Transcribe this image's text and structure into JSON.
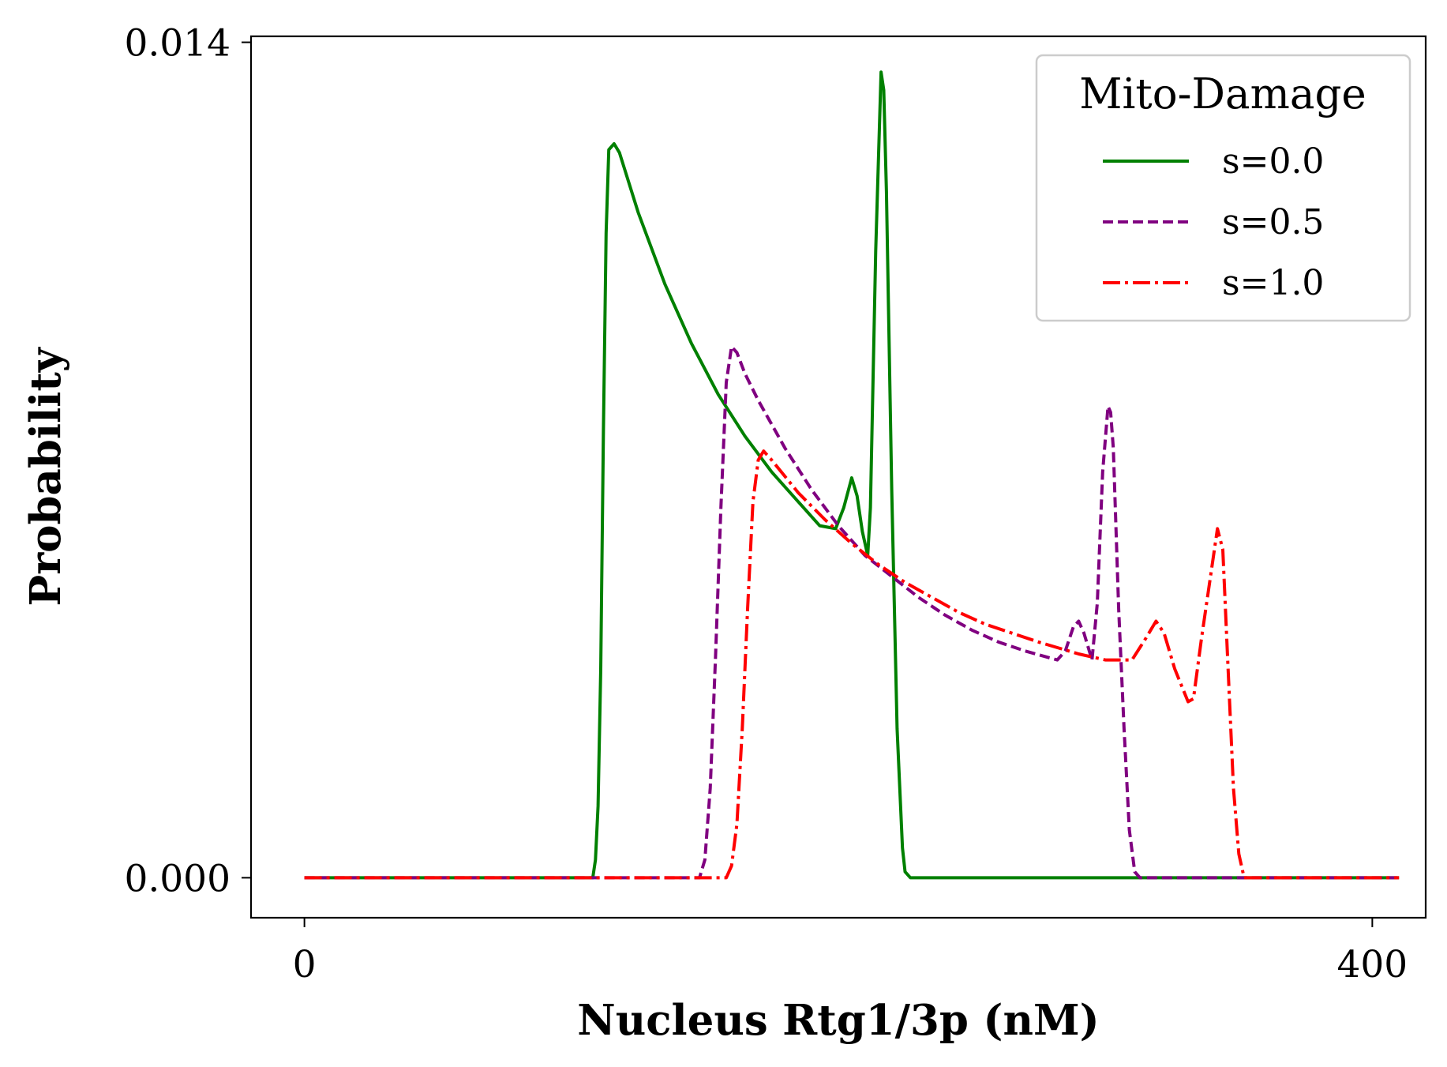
{
  "chart_data": {
    "type": "line",
    "title": "",
    "xlabel": "Nucleus Rtg1/3p (nM)",
    "ylabel": "Probability",
    "xlim": [
      -20,
      420
    ],
    "ylim": [
      -0.00067,
      0.0141
    ],
    "x_ticks": [
      0,
      400
    ],
    "x_tick_labels": [
      "0",
      "400"
    ],
    "y_ticks": [
      0.0,
      0.014
    ],
    "y_tick_labels": [
      "0.000",
      "0.014"
    ],
    "grid": false,
    "legend": {
      "title": "Mito-Damage",
      "position": "top-right"
    },
    "series": [
      {
        "name": "s=0.0",
        "color": "#008000",
        "style": "solid",
        "points": [
          [
            0,
            0
          ],
          [
            108,
            0
          ],
          [
            109,
            0.0003
          ],
          [
            110,
            0.0012
          ],
          [
            111,
            0.0035
          ],
          [
            112,
            0.0075
          ],
          [
            113,
            0.0108
          ],
          [
            114,
            0.0122
          ],
          [
            116,
            0.0123
          ],
          [
            118,
            0.01215
          ],
          [
            125,
            0.01115
          ],
          [
            135,
            0.00995
          ],
          [
            145,
            0.00895
          ],
          [
            155,
            0.0081
          ],
          [
            165,
            0.0074
          ],
          [
            175,
            0.0068
          ],
          [
            185,
            0.0063
          ],
          [
            193,
            0.0059
          ],
          [
            199,
            0.00585
          ],
          [
            202,
            0.0062
          ],
          [
            205,
            0.0067
          ],
          [
            207,
            0.0064
          ],
          [
            209,
            0.0058
          ],
          [
            211,
            0.0054
          ],
          [
            212,
            0.0062
          ],
          [
            214,
            0.0105
          ],
          [
            216,
            0.0135
          ],
          [
            217,
            0.0132
          ],
          [
            218,
            0.0115
          ],
          [
            220,
            0.0065
          ],
          [
            222,
            0.0025
          ],
          [
            224,
            0.0005
          ],
          [
            225,
            0.0001
          ],
          [
            227,
            0
          ],
          [
            410,
            0
          ]
        ]
      },
      {
        "name": "s=0.5",
        "color": "#800080",
        "style": "dashed",
        "points": [
          [
            0,
            0
          ],
          [
            148,
            0
          ],
          [
            150,
            0.0003
          ],
          [
            152,
            0.0015
          ],
          [
            154,
            0.0037
          ],
          [
            156,
            0.0062
          ],
          [
            158,
            0.0083
          ],
          [
            160,
            0.0089
          ],
          [
            162,
            0.0088
          ],
          [
            165,
            0.00845
          ],
          [
            170,
            0.008
          ],
          [
            180,
            0.0072
          ],
          [
            190,
            0.0065
          ],
          [
            200,
            0.0059
          ],
          [
            210,
            0.0054
          ],
          [
            220,
            0.00505
          ],
          [
            230,
            0.0047
          ],
          [
            240,
            0.0044
          ],
          [
            250,
            0.00415
          ],
          [
            260,
            0.00395
          ],
          [
            270,
            0.0038
          ],
          [
            282,
            0.00365
          ],
          [
            285,
            0.0038
          ],
          [
            288,
            0.0042
          ],
          [
            290,
            0.0043
          ],
          [
            292,
            0.0041
          ],
          [
            294,
            0.0038
          ],
          [
            295,
            0.00365
          ],
          [
            297,
            0.0046
          ],
          [
            299,
            0.0068
          ],
          [
            301,
            0.0079
          ],
          [
            302,
            0.0078
          ],
          [
            303,
            0.0072
          ],
          [
            305,
            0.0045
          ],
          [
            307,
            0.0025
          ],
          [
            309,
            0.0008
          ],
          [
            311,
            0.0001
          ],
          [
            313,
            0
          ],
          [
            410,
            0
          ]
        ]
      },
      {
        "name": "s=1.0",
        "color": "#ff0000",
        "style": "dashdot",
        "points": [
          [
            0,
            0
          ],
          [
            158,
            0
          ],
          [
            160,
            0.0002
          ],
          [
            162,
            0.0009
          ],
          [
            164,
            0.0025
          ],
          [
            166,
            0.0045
          ],
          [
            168,
            0.0063
          ],
          [
            170,
            0.007
          ],
          [
            172,
            0.00715
          ],
          [
            175,
            0.007
          ],
          [
            185,
            0.00645
          ],
          [
            195,
            0.006
          ],
          [
            205,
            0.0056
          ],
          [
            215,
            0.00525
          ],
          [
            225,
            0.00495
          ],
          [
            235,
            0.0047
          ],
          [
            245,
            0.00445
          ],
          [
            255,
            0.00425
          ],
          [
            265,
            0.0041
          ],
          [
            275,
            0.00395
          ],
          [
            290,
            0.00375
          ],
          [
            300,
            0.00365
          ],
          [
            310,
            0.00365
          ],
          [
            315,
            0.004
          ],
          [
            319,
            0.0043
          ],
          [
            322,
            0.0041
          ],
          [
            326,
            0.0035
          ],
          [
            331,
            0.00295
          ],
          [
            333,
            0.003
          ],
          [
            336,
            0.004
          ],
          [
            342,
            0.00585
          ],
          [
            344,
            0.0055
          ],
          [
            346,
            0.0035
          ],
          [
            348,
            0.0015
          ],
          [
            350,
            0.0004
          ],
          [
            352,
            0.0
          ],
          [
            410,
            0
          ]
        ]
      }
    ]
  }
}
